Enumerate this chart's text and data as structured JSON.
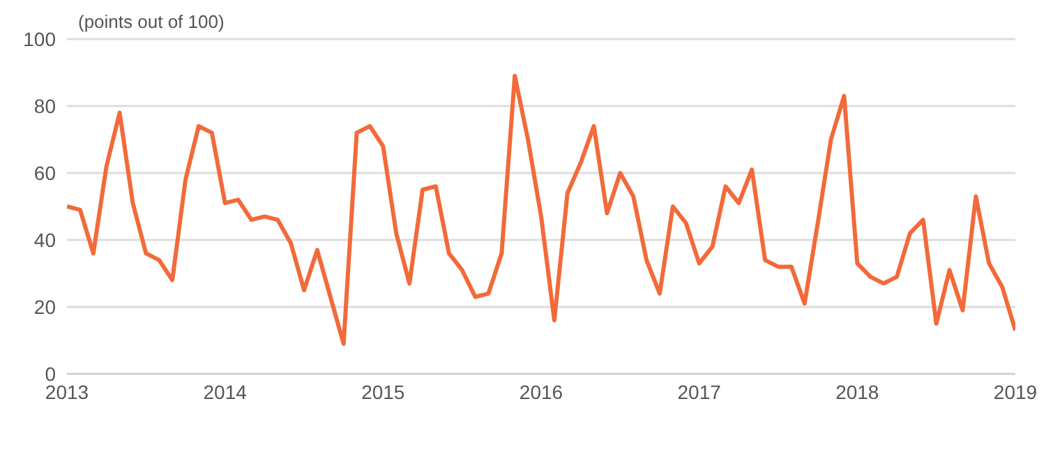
{
  "chart_data": {
    "type": "line",
    "ylabel": "(points out of 100)",
    "x": [
      "2013-01",
      "2013-02",
      "2013-03",
      "2013-04",
      "2013-05",
      "2013-06",
      "2013-07",
      "2013-08",
      "2013-09",
      "2013-10",
      "2013-11",
      "2013-12",
      "2014-01",
      "2014-02",
      "2014-03",
      "2014-04",
      "2014-05",
      "2014-06",
      "2014-07",
      "2014-08",
      "2014-09",
      "2014-10",
      "2014-11",
      "2014-12",
      "2015-01",
      "2015-02",
      "2015-03",
      "2015-04",
      "2015-05",
      "2015-06",
      "2015-07",
      "2015-08",
      "2015-09",
      "2015-10",
      "2015-11",
      "2015-12",
      "2016-01",
      "2016-02",
      "2016-03",
      "2016-04",
      "2016-05",
      "2016-06",
      "2016-07",
      "2016-08",
      "2016-09",
      "2016-10",
      "2016-11",
      "2016-12",
      "2017-01",
      "2017-02",
      "2017-03",
      "2017-04",
      "2017-05",
      "2017-06",
      "2017-07",
      "2017-08",
      "2017-09",
      "2017-10",
      "2017-11",
      "2017-12",
      "2018-01",
      "2018-02",
      "2018-03",
      "2018-04",
      "2018-05",
      "2018-06",
      "2018-07",
      "2018-08",
      "2018-09",
      "2018-10",
      "2018-11",
      "2018-12",
      "2019-01"
    ],
    "series": [
      {
        "color": "#f26a3a",
        "values": [
          50,
          49,
          36,
          62,
          78,
          51,
          36,
          34,
          28,
          58,
          74,
          72,
          51,
          52,
          46,
          47,
          46,
          39,
          25,
          37,
          23,
          9,
          72,
          74,
          68,
          42,
          27,
          55,
          56,
          36,
          31,
          23,
          24,
          36,
          89,
          70,
          47,
          16,
          54,
          63,
          74,
          48,
          60,
          53,
          34,
          24,
          50,
          45,
          33,
          38,
          56,
          51,
          61,
          34,
          32,
          32,
          21,
          45,
          70,
          83,
          33,
          29,
          27,
          29,
          42,
          46,
          15,
          31,
          19,
          53,
          33,
          26,
          13
        ]
      }
    ],
    "xlim": [
      "2013",
      "2019"
    ],
    "xticks": [
      "2013",
      "2014",
      "2015",
      "2016",
      "2017",
      "2018",
      "2019"
    ],
    "ylim": [
      0,
      100
    ],
    "yticks": [
      0,
      20,
      40,
      60,
      80,
      100
    ],
    "grid": "y",
    "legend": false,
    "marker": "none",
    "line_style": "solid"
  }
}
